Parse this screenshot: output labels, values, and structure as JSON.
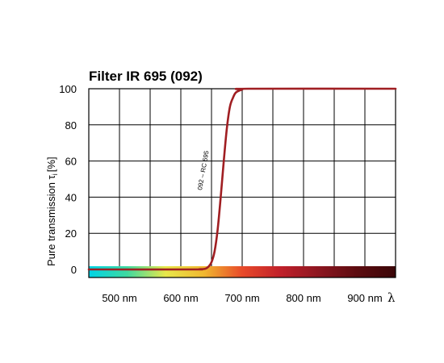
{
  "chart_data": {
    "type": "line",
    "title": "Filter IR 695 (092)",
    "ylabel_main": "Pure transmission τ",
    "ylabel_sub": "i",
    "ylabel_unit": "[%]",
    "xlabel_symbol": "λ",
    "xlim": [
      450,
      950
    ],
    "ylim": [
      0,
      100
    ],
    "x_ticks": [
      500,
      600,
      700,
      800,
      900
    ],
    "x_tick_labels": [
      "500 nm",
      "600 nm",
      "700 nm",
      "800 nm",
      "900 nm"
    ],
    "y_ticks": [
      0,
      20,
      40,
      60,
      80,
      100
    ],
    "y_tick_labels": [
      "0",
      "20",
      "40",
      "60",
      "80",
      "100"
    ],
    "grid": true,
    "curve_color": "#a01e22",
    "series": [
      {
        "name": "092 – RC 695",
        "x": [
          450,
          620,
          630,
          640,
          645,
          650,
          655,
          660,
          665,
          670,
          675,
          680,
          685,
          690,
          700,
          710,
          950
        ],
        "y": [
          0,
          0,
          0.1,
          0.4,
          1.5,
          4,
          10,
          22,
          40,
          60,
          78,
          90,
          95,
          98,
          99.5,
          100,
          100
        ]
      }
    ],
    "spectrum_colors": [
      "#00d4e6",
      "#3fd9a0",
      "#e8e84a",
      "#f0b830",
      "#e84a2a",
      "#c0202a",
      "#8c1620",
      "#5c0c10",
      "#3a0608"
    ]
  }
}
